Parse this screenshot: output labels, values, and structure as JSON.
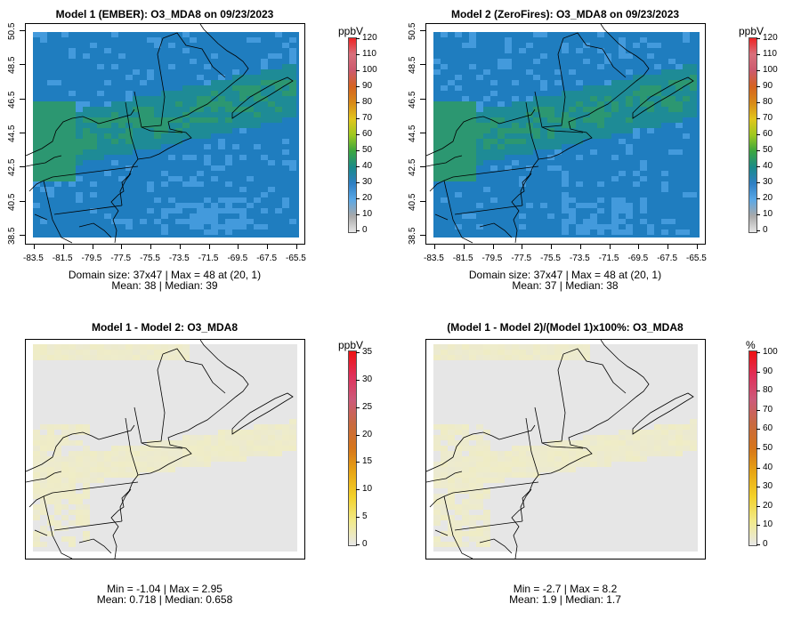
{
  "panels": [
    {
      "title": "Model 1 (EMBER): O3_MDA8 on 09/23/2023",
      "stats_line1": "Domain size: 37x47 | Max = 48 at (20, 1)",
      "stats_line2": "Mean: 38 |  Median: 39",
      "unit": "ppbV",
      "colorbar_ticks": [
        "120",
        "110",
        "100",
        "90",
        "80",
        "70",
        "60",
        "50",
        "40",
        "30",
        "20",
        "10",
        "0"
      ],
      "x_ticks": [
        "-83.5",
        "-81.5",
        "-79.5",
        "-77.5",
        "-75.5",
        "-73.5",
        "-71.5",
        "-69.5",
        "-67.5",
        "-65.5"
      ],
      "y_ticks": [
        "38.5",
        "40.5",
        "42.5",
        "44.5",
        "46.5",
        "48.5",
        "50.5"
      ]
    },
    {
      "title": "Model 2 (ZeroFires): O3_MDA8 on 09/23/2023",
      "stats_line1": "Domain size: 37x47 | Max = 48 at (20, 1)",
      "stats_line2": "Mean: 37 |  Median: 38",
      "unit": "ppbV",
      "colorbar_ticks": [
        "120",
        "110",
        "100",
        "90",
        "80",
        "70",
        "60",
        "50",
        "40",
        "30",
        "20",
        "10",
        "0"
      ],
      "x_ticks": [
        "-83.5",
        "-81.5",
        "-79.5",
        "-77.5",
        "-75.5",
        "-73.5",
        "-71.5",
        "-69.5",
        "-67.5",
        "-65.5"
      ],
      "y_ticks": [
        "38.5",
        "40.5",
        "42.5",
        "44.5",
        "46.5",
        "48.5",
        "50.5"
      ]
    },
    {
      "title": "Model 1 - Model 2: O3_MDA8",
      "stats_line1": "Min = -1.04 | Max = 2.95",
      "stats_line2": "Mean: 0.718 |  Median: 0.658",
      "unit": "ppbV",
      "colorbar_ticks": [
        "35",
        "30",
        "25",
        "20",
        "15",
        "10",
        "5",
        "0"
      ]
    },
    {
      "title": "(Model 1 - Model 2)/(Model 1)x100%: O3_MDA8",
      "stats_line1": "Min = -2.7 | Max = 8.2",
      "stats_line2": "Mean: 1.9 |  Median: 1.7",
      "unit": "%",
      "colorbar_ticks": [
        "100",
        "90",
        "80",
        "70",
        "60",
        "50",
        "40",
        "30",
        "20",
        "10",
        "0"
      ]
    }
  ],
  "chart_data": [
    {
      "type": "heatmap",
      "title": "Model 1 (EMBER): O3_MDA8 on 09/23/2023",
      "xlabel": "",
      "ylabel": "",
      "xlim": [
        -83.5,
        -65.5
      ],
      "ylim": [
        38.5,
        50.5
      ],
      "grid_size": "37x47",
      "max": 48,
      "mean": 38,
      "median": 39,
      "colorscale": {
        "unit": "ppbV",
        "range": [
          0,
          120
        ]
      }
    },
    {
      "type": "heatmap",
      "title": "Model 2 (ZeroFires): O3_MDA8 on 09/23/2023",
      "xlabel": "",
      "ylabel": "",
      "xlim": [
        -83.5,
        -65.5
      ],
      "ylim": [
        38.5,
        50.5
      ],
      "grid_size": "37x47",
      "max": 48,
      "mean": 37,
      "median": 38,
      "colorscale": {
        "unit": "ppbV",
        "range": [
          0,
          120
        ]
      }
    },
    {
      "type": "heatmap",
      "title": "Model 1 - Model 2: O3_MDA8",
      "min": -1.04,
      "max": 2.95,
      "mean": 0.718,
      "median": 0.658,
      "colorscale": {
        "unit": "ppbV",
        "range": [
          0,
          35
        ]
      }
    },
    {
      "type": "heatmap",
      "title": "(Model 1 - Model 2)/(Model 1)x100%: O3_MDA8",
      "min": -2.7,
      "max": 8.2,
      "mean": 1.9,
      "median": 1.7,
      "colorscale": {
        "unit": "%",
        "range": [
          0,
          100
        ]
      }
    }
  ],
  "colors": {
    "abs_scale": [
      "#e6e6e6",
      "#a9a9a9",
      "#5aa8e6",
      "#2f7fc4",
      "#1a8a8a",
      "#3aa540",
      "#9dc820",
      "#e2c51c",
      "#d88a18",
      "#d56320",
      "#cc5a6e",
      "#d8707c",
      "#ee2222"
    ],
    "diff_scale": [
      "#e8e8e8",
      "#f2ea8a",
      "#f3d12a",
      "#e8a614",
      "#d6751a",
      "#c86a40",
      "#cc5a7a",
      "#e0305a",
      "#ee1111"
    ],
    "model_field_base": "#1f7dbf",
    "model_field_teal": "#1e8d8e",
    "model_field_green": "#2f9b63",
    "model_field_light": "#4a9fe0",
    "diff_field_base": "#e6e6e6",
    "diff_field_yellow": "#efecc4"
  }
}
